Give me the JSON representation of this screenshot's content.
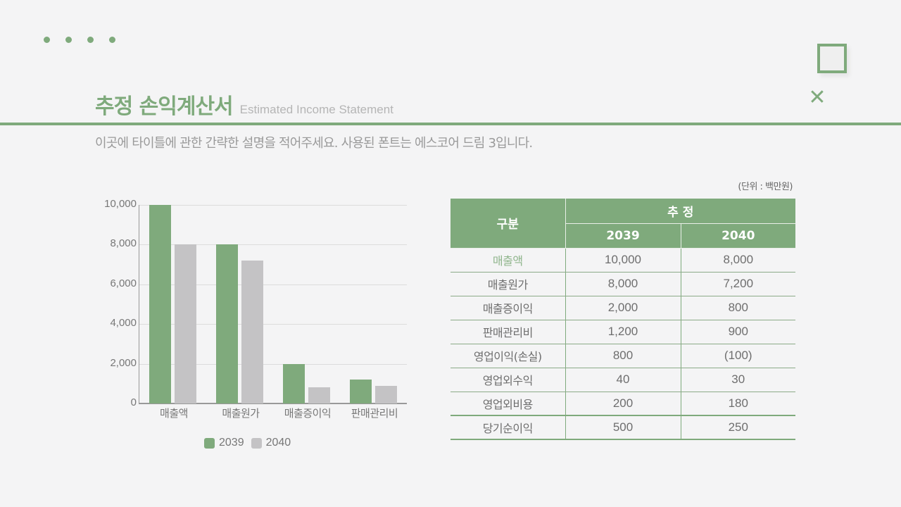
{
  "header": {
    "title_ko": "추정 손익계산서",
    "title_en": "Estimated Income Statement",
    "subtitle": "이곳에 타이틀에 관한 간략한 설명을 적어주세요. 사용된 폰트는 에스코어 드림 3입니다.",
    "decor": {
      "dots": 4,
      "square_icon": "square-outline-icon",
      "x_icon": "close-x-icon",
      "x_glyph": "✕"
    }
  },
  "colors": {
    "accent": "#7faa7c",
    "series_2039": "#7faa7c",
    "series_2040": "#c4c3c5",
    "background": "#f4f4f5"
  },
  "chart_data": {
    "type": "bar",
    "title": "",
    "categories": [
      "매출액",
      "매출원가",
      "매출증이익",
      "판매관리비"
    ],
    "series": [
      {
        "name": "2039",
        "values": [
          10000,
          8000,
          2000,
          1200
        ],
        "color": "#7faa7c"
      },
      {
        "name": "2040",
        "values": [
          8000,
          7200,
          800,
          900
        ],
        "color": "#c4c3c5"
      }
    ],
    "xlabel": "",
    "ylabel": "",
    "ylim": [
      0,
      10000
    ],
    "yticks": [
      "0",
      "2,000",
      "4,000",
      "6,000",
      "8,000",
      "10,000"
    ],
    "grid": true,
    "legend_position": "bottom"
  },
  "legend": [
    {
      "label": "2039",
      "color": "#7faa7c"
    },
    {
      "label": "2040",
      "color": "#c4c3c5"
    }
  ],
  "table": {
    "unit": "(단위 : 백만원)",
    "header_col": "구분",
    "header_group": "추 정",
    "years": [
      "2039",
      "2040"
    ],
    "rows": [
      {
        "label": "매출액",
        "v2039": "10,000",
        "v2040": "8,000"
      },
      {
        "label": "매출원가",
        "v2039": "8,000",
        "v2040": "7,200"
      },
      {
        "label": "매출증이익",
        "v2039": "2,000",
        "v2040": "800"
      },
      {
        "label": "판매관리비",
        "v2039": "1,200",
        "v2040": "900"
      },
      {
        "label": "영업이익(손실)",
        "v2039": "800",
        "v2040": "(100)"
      },
      {
        "label": "영업외수익",
        "v2039": "40",
        "v2040": "30"
      },
      {
        "label": "영업외비용",
        "v2039": "200",
        "v2040": "180"
      },
      {
        "label": "당기순이익",
        "v2039": "500",
        "v2040": "250"
      }
    ]
  }
}
